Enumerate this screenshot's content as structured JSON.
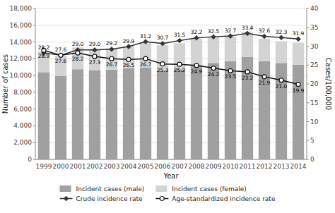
{
  "chart_data": {
    "type": "bar",
    "stacked": true,
    "grid": true,
    "legend": "bottom",
    "x_label": "Year",
    "y_label": "Number of cases",
    "y2_label": "Cases/100,000",
    "categories": [
      "1999",
      "2000",
      "2001",
      "2002",
      "2003",
      "2004",
      "2005",
      "2006",
      "2007",
      "2008",
      "2009",
      "2010",
      "2011",
      "2012",
      "2013",
      "2014"
    ],
    "ylim": [
      0,
      18000
    ],
    "yticks": [
      0,
      {
        "value": 2000,
        "label": "2,000"
      },
      {
        "value": 4000,
        "label": "4,000"
      },
      {
        "value": 6000,
        "label": "6,000"
      },
      {
        "value": 8000,
        "label": "8,000"
      },
      {
        "value": 10000,
        "label": "10,000"
      },
      {
        "value": 12000,
        "label": "12,000"
      },
      {
        "value": 14000,
        "label": "14,000"
      },
      {
        "value": 16000,
        "label": "16,000"
      },
      {
        "value": 18000,
        "label": "18,000"
      }
    ],
    "y2lim": [
      0,
      40
    ],
    "y2ticks": [
      0,
      5,
      10,
      15,
      20,
      25,
      30,
      35,
      40
    ],
    "series": [
      {
        "name": "Incident cases (male)",
        "type": "bar",
        "color": "#a0a0a0",
        "values": [
          10400,
          9950,
          10750,
          10650,
          10700,
          10900,
          10950,
          10600,
          10750,
          11300,
          11500,
          11700,
          12200,
          11700,
          11500,
          11300
        ]
      },
      {
        "name": "Incident cases (female)",
        "type": "bar",
        "color": "#d3d3d3",
        "values": [
          2500,
          2400,
          2600,
          2550,
          2550,
          2600,
          3100,
          3000,
          3100,
          3100,
          3050,
          2950,
          3000,
          2700,
          2600,
          2600
        ]
      },
      {
        "name": "Crude incidence rate",
        "type": "line",
        "axis": "y2",
        "color": "#333333",
        "marker": "diamond",
        "data_labels": true,
        "values": [
          28.2,
          27.6,
          29.0,
          29.0,
          29.2,
          29.9,
          31.2,
          30.7,
          31.5,
          32.2,
          32.5,
          32.7,
          33.4,
          32.6,
          32.3,
          31.9
        ],
        "value_labels": [
          "28.2",
          "27.6",
          "29.0",
          "29.0",
          "29.2",
          "29.9",
          "31.2",
          "30.7",
          "31.5",
          "32.2",
          "32.5",
          "32.7",
          "33.4",
          "32.6",
          "32.3",
          "31.9"
        ]
      },
      {
        "name": "Age-standardized incidence rate",
        "type": "line",
        "axis": "y2",
        "color": "#111111",
        "marker": "open-circle",
        "data_labels": true,
        "values": [
          28.9,
          27.6,
          28.2,
          27.3,
          26.7,
          26.5,
          26.7,
          25.3,
          25.2,
          24.9,
          24.2,
          23.5,
          23.2,
          21.9,
          21.0,
          19.9
        ],
        "value_labels": [
          "28.9",
          "27.6",
          "28.2",
          "27.3",
          "26.7",
          "26.5",
          "26.7",
          "25.3",
          "25.2",
          "24.9",
          "24.2",
          "23.5",
          "23.2",
          "21.9",
          "21.0",
          "19.9"
        ]
      }
    ]
  }
}
